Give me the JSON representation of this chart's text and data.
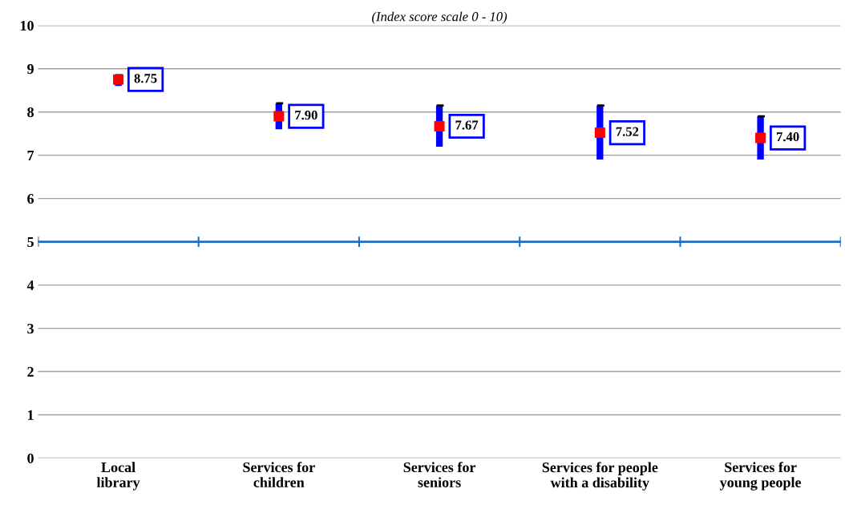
{
  "chart_data": {
    "type": "scatter",
    "title": "(Index score scale 0 - 10)",
    "categories": [
      "Local\nlibrary",
      "Services for\nchildren",
      "Services for\nseniors",
      "Services for people\nwith a disability",
      "Services for\nyoung people"
    ],
    "series": [
      {
        "color": "#ff0000",
        "values": [
          8.75,
          7.9,
          7.67,
          7.52,
          7.4
        ],
        "value_labels": [
          "8.75",
          "7.90",
          "7.67",
          "7.52",
          "7.40"
        ],
        "errors": [
          [
            8.6,
            8.85
          ],
          [
            7.6,
            8.2
          ],
          [
            7.2,
            8.15
          ],
          [
            6.9,
            8.15
          ],
          [
            6.9,
            7.9
          ]
        ]
      }
    ],
    "ylim": [
      0,
      10
    ],
    "yticks": [
      0,
      1,
      2,
      3,
      4,
      5,
      6,
      7,
      8,
      9,
      10
    ],
    "grid": "y",
    "marker": "square",
    "ref_lines": [
      {
        "axis": "y",
        "value": 5,
        "color": "#1f6fc0"
      }
    ]
  }
}
